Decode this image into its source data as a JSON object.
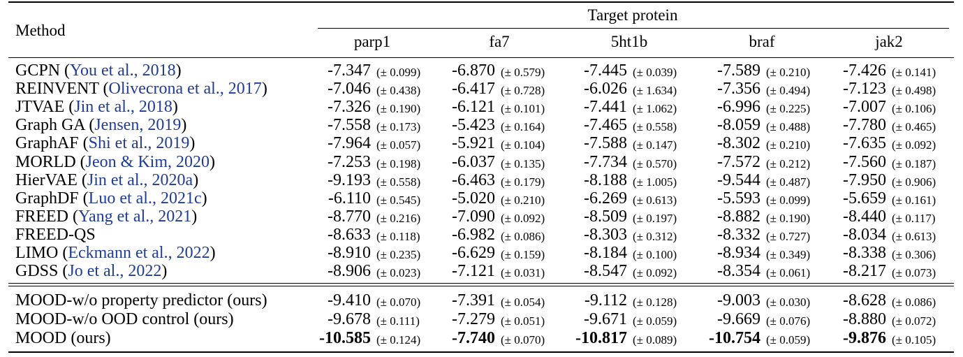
{
  "header": {
    "method_label": "Method",
    "group_label": "Target protein",
    "columns": [
      "parp1",
      "fa7",
      "5ht1b",
      "braf",
      "jak2"
    ]
  },
  "group1": [
    {
      "name": "GCPN",
      "cite": "You et al., 2018",
      "cells": [
        [
          "-7.347",
          "(± 0.099)"
        ],
        [
          "-6.870",
          "(± 0.579)"
        ],
        [
          "-7.445",
          "(± 0.039)"
        ],
        [
          "-7.589",
          "(± 0.210)"
        ],
        [
          "-7.426",
          "(± 0.141)"
        ]
      ]
    },
    {
      "name": "REINVENT",
      "cite": "Olivecrona et al., 2017",
      "cells": [
        [
          "-7.046",
          "(± 0.438)"
        ],
        [
          "-6.417",
          "(± 0.728)"
        ],
        [
          "-6.026",
          "(± 1.634)"
        ],
        [
          "-7.356",
          "(± 0.494)"
        ],
        [
          "-7.123",
          "(± 0.498)"
        ]
      ]
    },
    {
      "name": "JTVAE",
      "cite": "Jin et al., 2018",
      "cells": [
        [
          "-7.326",
          "(± 0.190)"
        ],
        [
          "-6.121",
          "(± 0.101)"
        ],
        [
          "-7.441",
          "(± 1.062)"
        ],
        [
          "-6.996",
          "(± 0.225)"
        ],
        [
          "-7.007",
          "(± 0.106)"
        ]
      ]
    },
    {
      "name": "Graph GA",
      "cite": "Jensen, 2019",
      "cells": [
        [
          "-7.558",
          "(± 0.173)"
        ],
        [
          "-5.423",
          "(± 0.164)"
        ],
        [
          "-7.465",
          "(± 0.558)"
        ],
        [
          "-8.059",
          "(± 0.488)"
        ],
        [
          "-7.780",
          "(± 0.465)"
        ]
      ]
    },
    {
      "name": "GraphAF",
      "cite": "Shi et al., 2019",
      "cells": [
        [
          "-7.964",
          "(± 0.057)"
        ],
        [
          "-5.921",
          "(± 0.104)"
        ],
        [
          "-7.588",
          "(± 0.147)"
        ],
        [
          "-8.302",
          "(± 0.210)"
        ],
        [
          "-7.635",
          "(± 0.092)"
        ]
      ]
    },
    {
      "name": "MORLD",
      "cite": "Jeon & Kim, 2020",
      "cells": [
        [
          "-7.253",
          "(± 0.198)"
        ],
        [
          "-6.037",
          "(± 0.135)"
        ],
        [
          "-7.734",
          "(± 0.570)"
        ],
        [
          "-7.572",
          "(± 0.212)"
        ],
        [
          "-7.560",
          "(± 0.187)"
        ]
      ]
    },
    {
      "name": "HierVAE",
      "cite": "Jin et al., 2020a",
      "cells": [
        [
          "-9.193",
          "(± 0.558)"
        ],
        [
          "-6.463",
          "(± 0.179)"
        ],
        [
          "-8.188",
          "(± 1.005)"
        ],
        [
          "-9.544",
          "(± 0.487)"
        ],
        [
          "-7.950",
          "(± 0.906)"
        ]
      ]
    },
    {
      "name": "GraphDF",
      "cite": "Luo et al., 2021c",
      "cells": [
        [
          "-6.110",
          "(± 0.545)"
        ],
        [
          "-5.020",
          "(± 0.210)"
        ],
        [
          "-6.269",
          "(± 0.613)"
        ],
        [
          "-5.593",
          "(± 0.099)"
        ],
        [
          "-5.659",
          "(± 0.161)"
        ]
      ]
    },
    {
      "name": "FREED",
      "cite": "Yang et al., 2021",
      "cells": [
        [
          "-8.770",
          "(± 0.216)"
        ],
        [
          "-7.090",
          "(± 0.092)"
        ],
        [
          "-8.509",
          "(± 0.197)"
        ],
        [
          "-8.882",
          "(± 0.190)"
        ],
        [
          "-8.440",
          "(± 0.117)"
        ]
      ]
    },
    {
      "name": "FREED-QS",
      "cite": "",
      "cells": [
        [
          "-8.633",
          "(± 0.118)"
        ],
        [
          "-6.982",
          "(± 0.086)"
        ],
        [
          "-8.303",
          "(± 0.312)"
        ],
        [
          "-8.332",
          "(± 0.727)"
        ],
        [
          "-8.034",
          "(± 0.613)"
        ]
      ]
    },
    {
      "name": "LIMO",
      "cite": "Eckmann et al., 2022",
      "cells": [
        [
          "-8.910",
          "(± 0.235)"
        ],
        [
          "-6.629",
          "(± 0.159)"
        ],
        [
          "-8.184",
          "(± 0.100)"
        ],
        [
          "-8.934",
          "(± 0.349)"
        ],
        [
          "-8.338",
          "(± 0.306)"
        ]
      ]
    },
    {
      "name": "GDSS",
      "cite": "Jo et al., 2022",
      "cells": [
        [
          "-8.906",
          "(± 0.023)"
        ],
        [
          "-7.121",
          "(± 0.031)"
        ],
        [
          "-8.547",
          "(± 0.092)"
        ],
        [
          "-8.354",
          "(± 0.061)"
        ],
        [
          "-8.217",
          "(± 0.073)"
        ]
      ]
    }
  ],
  "group2": [
    {
      "name": "MOOD-w/o property predictor (ours)",
      "bold": false,
      "cells": [
        [
          "-9.410",
          "(± 0.070)"
        ],
        [
          "-7.391",
          "(± 0.054)"
        ],
        [
          "-9.112",
          "(± 0.128)"
        ],
        [
          "-9.003",
          "(± 0.030)"
        ],
        [
          "-8.628",
          "(± 0.086)"
        ]
      ]
    },
    {
      "name": "MOOD-w/o OOD control (ours)",
      "bold": false,
      "cells": [
        [
          "-9.678",
          "(± 0.111)"
        ],
        [
          "-7.279",
          "(± 0.051)"
        ],
        [
          "-9.671",
          "(± 0.059)"
        ],
        [
          "-9.669",
          "(± 0.076)"
        ],
        [
          "-8.880",
          "(± 0.072)"
        ]
      ]
    },
    {
      "name": "MOOD (ours)",
      "bold": true,
      "cells": [
        [
          "-10.585",
          "(± 0.124)"
        ],
        [
          "-7.740",
          "(± 0.070)"
        ],
        [
          "-10.817",
          "(± 0.089)"
        ],
        [
          "-10.754",
          "(± 0.059)"
        ],
        [
          "-9.876",
          "(± 0.105)"
        ]
      ]
    }
  ]
}
